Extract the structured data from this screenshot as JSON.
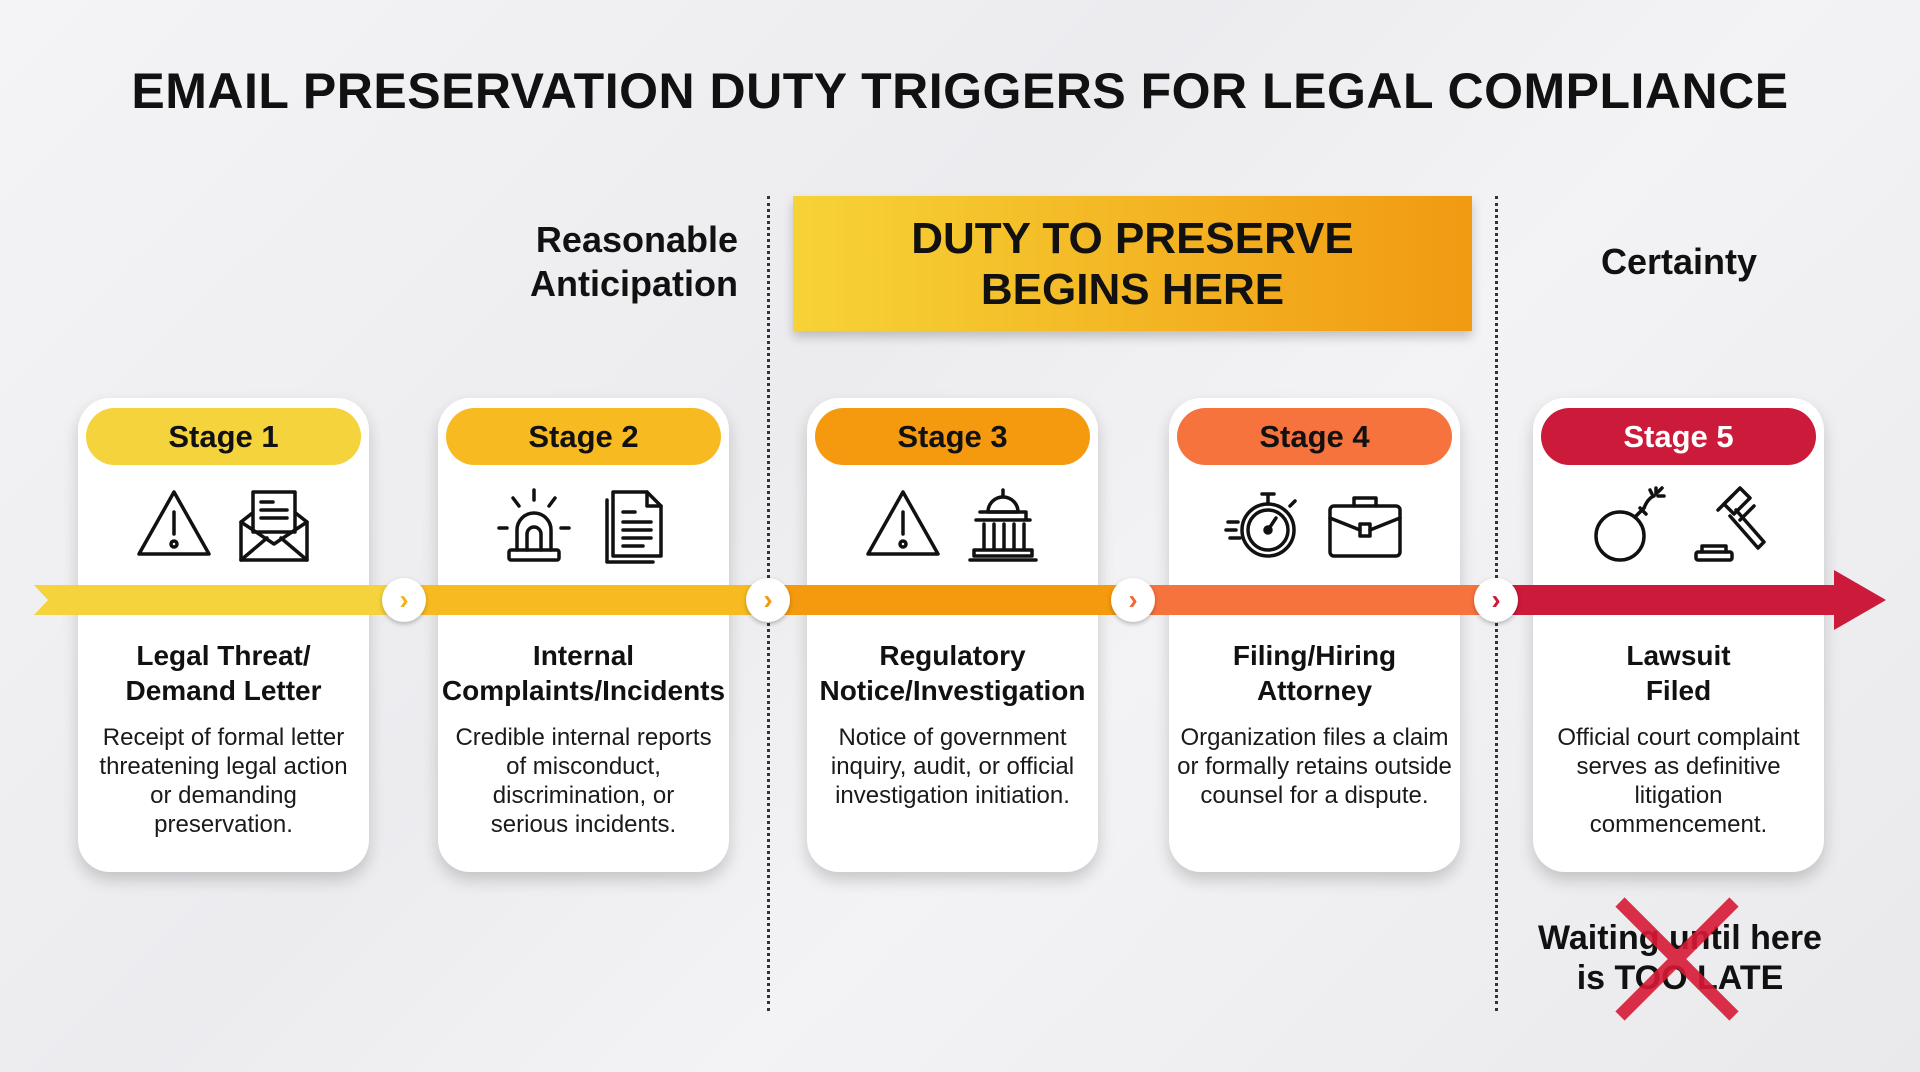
{
  "title": "EMAIL PRESERVATION DUTY TRIGGERS FOR LEGAL COMPLIANCE",
  "banner": {
    "line1": "DUTY TO PRESERVE",
    "line2": "BEGINS HERE"
  },
  "zones": {
    "anticipation_line1": "Reasonable",
    "anticipation_line2": "Anticipation",
    "certainty": "Certainty"
  },
  "stages": [
    {
      "label": "Stage 1",
      "color": "#f5d33d",
      "text_color": "#111111",
      "heading1": "Legal Threat/",
      "heading2": "Demand Letter",
      "desc": "Receipt of formal letter threatening legal action or demanding preservation.",
      "icons": [
        "warning-icon",
        "open-envelope-letter-icon"
      ]
    },
    {
      "label": "Stage 2",
      "color": "#f7bb21",
      "text_color": "#111111",
      "heading1": "Internal",
      "heading2": "Complaints/Incidents",
      "desc": "Credible internal reports of misconduct, discrimination, or serious incidents.",
      "icons": [
        "siren-alarm-icon",
        "documents-icon"
      ]
    },
    {
      "label": "Stage 3",
      "color": "#f59a0e",
      "text_color": "#111111",
      "heading1": "Regulatory",
      "heading2": "Notice/Investigation",
      "desc": "Notice of government inquiry, audit, or official investigation initiation.",
      "icons": [
        "warning-icon",
        "government-building-icon"
      ]
    },
    {
      "label": "Stage 4",
      "color": "#f7733d",
      "text_color": "#111111",
      "heading1": "Filing/Hiring",
      "heading2": "Attorney",
      "desc": "Organization files a claim or formally retains outside counsel for a dispute.",
      "icons": [
        "stopwatch-icon",
        "briefcase-icon"
      ]
    },
    {
      "label": "Stage 5",
      "color": "#cc1a3a",
      "text_color": "#ffffff",
      "heading1": "Lawsuit",
      "heading2": "Filed",
      "desc": "Official court complaint serves as definitive litigation commencement.",
      "icons": [
        "bomb-icon",
        "gavel-icon"
      ]
    }
  ],
  "warning": {
    "line1": "Waiting until here",
    "line2": "is TOO LATE",
    "cross_color": "#d61a35"
  }
}
